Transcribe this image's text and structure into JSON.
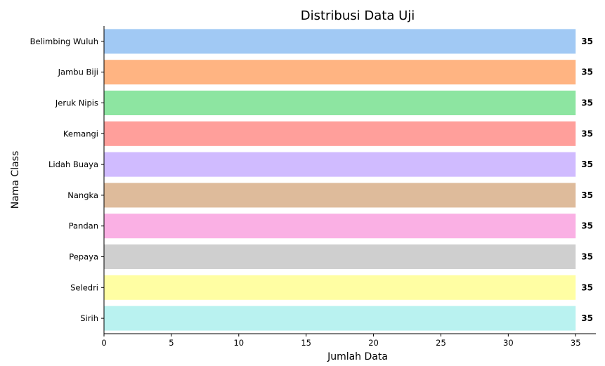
{
  "chart_data": {
    "type": "bar",
    "orientation": "horizontal",
    "title": "Distribusi Data Uji",
    "xlabel": "Jumlah Data",
    "ylabel": "Nama Class",
    "xlim": [
      0,
      36.5
    ],
    "xticks": [
      0,
      5,
      10,
      15,
      20,
      25,
      30,
      35
    ],
    "grid": false,
    "categories": [
      "Belimbing Wuluh",
      "Jambu Biji",
      "Jeruk Nipis",
      "Kemangi",
      "Lidah Buaya",
      "Nangka",
      "Pandan",
      "Pepaya",
      "Seledri",
      "Sirih"
    ],
    "values": [
      35,
      35,
      35,
      35,
      35,
      35,
      35,
      35,
      35,
      35
    ],
    "data_labels": [
      "35",
      "35",
      "35",
      "35",
      "35",
      "35",
      "35",
      "35",
      "35",
      "35"
    ],
    "colors": [
      "#a1c9f4",
      "#ffb482",
      "#8de5a1",
      "#ff9f9b",
      "#d0bbff",
      "#debb9b",
      "#fab0e4",
      "#cfcfcf",
      "#fffea3",
      "#b9f2f0"
    ]
  }
}
